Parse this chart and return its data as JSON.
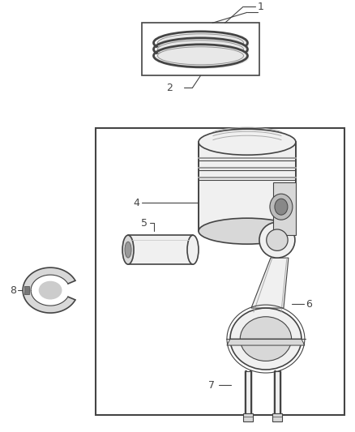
{
  "bg_color": "#ffffff",
  "lc": "#444444",
  "fc_light": "#f0f0f0",
  "fc_mid": "#d8d8d8",
  "fc_dark": "#bbbbbb",
  "fig_width": 4.38,
  "fig_height": 5.33,
  "dpi": 100
}
